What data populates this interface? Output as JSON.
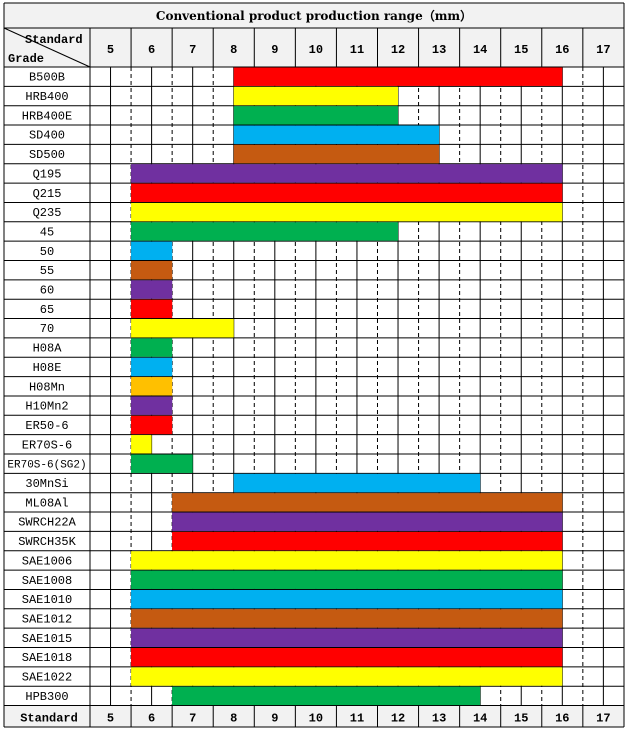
{
  "chart_data": {
    "type": "bar",
    "title": "Conventional product production range（mm）",
    "header_corner_top": "Standard",
    "header_corner_bottom": "Grade",
    "footer_label": "Standard",
    "x_ticks": [
      5,
      6,
      7,
      8,
      9,
      10,
      11,
      12,
      13,
      14,
      15,
      16,
      17
    ],
    "xlim": [
      5,
      17
    ],
    "grades": [
      {
        "label": "B500B",
        "start": 8,
        "end": 16,
        "color": "#ff0000"
      },
      {
        "label": "HRB400",
        "start": 8,
        "end": 12,
        "color": "#ffff00"
      },
      {
        "label": "HRB400E",
        "start": 8,
        "end": 12,
        "color": "#00b050"
      },
      {
        "label": "SD400",
        "start": 8,
        "end": 13,
        "color": "#00b0f0"
      },
      {
        "label": "SD500",
        "start": 8,
        "end": 13,
        "color": "#c55a11"
      },
      {
        "label": "Q195",
        "start": 5.5,
        "end": 16,
        "color": "#7030a0"
      },
      {
        "label": "Q215",
        "start": 5.5,
        "end": 16,
        "color": "#ff0000"
      },
      {
        "label": "Q235",
        "start": 5.5,
        "end": 16,
        "color": "#ffff00"
      },
      {
        "label": "45",
        "start": 5.5,
        "end": 12,
        "color": "#00b050"
      },
      {
        "label": "50",
        "start": 5.5,
        "end": 6.5,
        "color": "#00b0f0"
      },
      {
        "label": "55",
        "start": 5.5,
        "end": 6.5,
        "color": "#c55a11"
      },
      {
        "label": "60",
        "start": 5.5,
        "end": 6.5,
        "color": "#7030a0"
      },
      {
        "label": "65",
        "start": 5.5,
        "end": 6.5,
        "color": "#ff0000"
      },
      {
        "label": "70",
        "start": 5.5,
        "end": 8,
        "color": "#ffff00"
      },
      {
        "label": "H08A",
        "start": 5.5,
        "end": 6.5,
        "color": "#00b050"
      },
      {
        "label": "H08E",
        "start": 5.5,
        "end": 6.5,
        "color": "#00b0f0"
      },
      {
        "label": "H08Mn",
        "start": 5.5,
        "end": 6.5,
        "color": "#ffc000"
      },
      {
        "label": "H10Mn2",
        "start": 5.5,
        "end": 6.5,
        "color": "#7030a0"
      },
      {
        "label": "ER50-6",
        "start": 5.5,
        "end": 6.5,
        "color": "#ff0000"
      },
      {
        "label": "ER70S-6",
        "start": 5.5,
        "end": 6,
        "color": "#ffff00"
      },
      {
        "label": "ER70S-6(SG2)",
        "start": 5.5,
        "end": 7,
        "color": "#00b050"
      },
      {
        "label": "30MnSi",
        "start": 8,
        "end": 14,
        "color": "#00b0f0"
      },
      {
        "label": "ML08Al",
        "start": 6.5,
        "end": 16,
        "color": "#c55a11"
      },
      {
        "label": "SWRCH22A",
        "start": 6.5,
        "end": 16,
        "color": "#7030a0"
      },
      {
        "label": "SWRCH35K",
        "start": 6.5,
        "end": 16,
        "color": "#ff0000"
      },
      {
        "label": "SAE1006",
        "start": 5.5,
        "end": 16,
        "color": "#ffff00"
      },
      {
        "label": "SAE1008",
        "start": 5.5,
        "end": 16,
        "color": "#00b050"
      },
      {
        "label": "SAE1010",
        "start": 5.5,
        "end": 16,
        "color": "#00b0f0"
      },
      {
        "label": "SAE1012",
        "start": 5.5,
        "end": 16,
        "color": "#c55a11"
      },
      {
        "label": "SAE1015",
        "start": 5.5,
        "end": 16,
        "color": "#7030a0"
      },
      {
        "label": "SAE1018",
        "start": 5.5,
        "end": 16,
        "color": "#ff0000"
      },
      {
        "label": "SAE1022",
        "start": 5.5,
        "end": 16,
        "color": "#ffff00"
      },
      {
        "label": "HPB300",
        "start": 6.5,
        "end": 14,
        "color": "#00b050"
      }
    ],
    "colors": {
      "header_bg": "#f2f2f2",
      "grid": "#000000"
    }
  }
}
